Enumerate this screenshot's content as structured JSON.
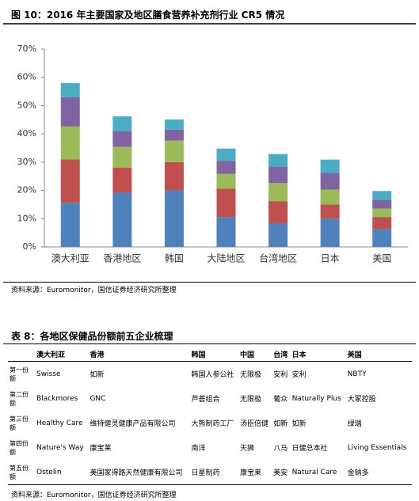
{
  "figure": {
    "title": "图 10：2016 年主要国家及地区膳食营养补充剂行业 CR5 情况",
    "chart_data": {
      "type": "bar",
      "stacked": true,
      "categories": [
        "澳大利亚",
        "香港地区",
        "韩国",
        "大陆地区",
        "台湾地区",
        "日本",
        "美国"
      ],
      "series": [
        {
          "color": "#4f81bd",
          "values": [
            15.6,
            19.2,
            20,
            10.6,
            8.4,
            10,
            6.4
          ]
        },
        {
          "color": "#c0504d",
          "values": [
            15.4,
            8.9,
            10,
            10,
            7.8,
            5,
            4.2
          ]
        },
        {
          "color": "#9bbb59",
          "values": [
            11.6,
            7.3,
            7.6,
            5.3,
            6.4,
            5.3,
            3
          ]
        },
        {
          "color": "#8064a2",
          "values": [
            10.4,
            5.6,
            3.9,
            4.5,
            5.8,
            5.9,
            3.1
          ]
        },
        {
          "color": "#4bacc6",
          "values": [
            5,
            5.2,
            3.6,
            4.4,
            4.5,
            4.7,
            3.1
          ]
        }
      ],
      "ylim": [
        0,
        70
      ],
      "yticks": [
        {
          "value": 0,
          "label": "0%"
        },
        {
          "value": 10,
          "label": "10%"
        },
        {
          "value": 20,
          "label": "20%"
        },
        {
          "value": 30,
          "label": "30%"
        },
        {
          "value": 40,
          "label": "40%"
        },
        {
          "value": 50,
          "label": "50%"
        },
        {
          "value": 60,
          "label": "60%"
        },
        {
          "value": 70,
          "label": "70%"
        }
      ]
    },
    "source": "资料来源：Euromonitor，国信证券经济研究所整理"
  },
  "table": {
    "title": "表 8：各地区保健品份额前五企业梳理",
    "header": [
      "澳大利亚",
      "香港",
      "韩国",
      "中国",
      "台湾",
      "日本",
      "美国"
    ],
    "rows": [
      [
        "第一份额",
        "Swisse",
        "如新",
        "韩国人参公社",
        "无限极",
        "安利",
        "安利",
        "NBTY"
      ],
      [
        "第二份额",
        "Blackmores",
        "GNC",
        "芦荟组合",
        "无限极",
        "葡众",
        "Naturally Plus",
        "大冢控股"
      ],
      [
        "第三份额",
        "Healthy Care",
        "维特健灵健康产品有限公司",
        "大熊制药工厂",
        "汤臣倍健",
        "如新",
        "如新",
        "绿瑞"
      ],
      [
        "第四份额",
        "Nature's Way",
        "康宝莱",
        "南洋",
        "天狮",
        "八马",
        "日健总本社",
        "Living Essentials"
      ],
      [
        "第五份额",
        "Ostelin",
        "美国家得路天然健康有限公司",
        "日星制药",
        "康宝莱",
        "美安",
        "Natural Care",
        "金钠多"
      ]
    ],
    "source": "资料来源：Euromonitor，国信证券经济研究所整理"
  }
}
